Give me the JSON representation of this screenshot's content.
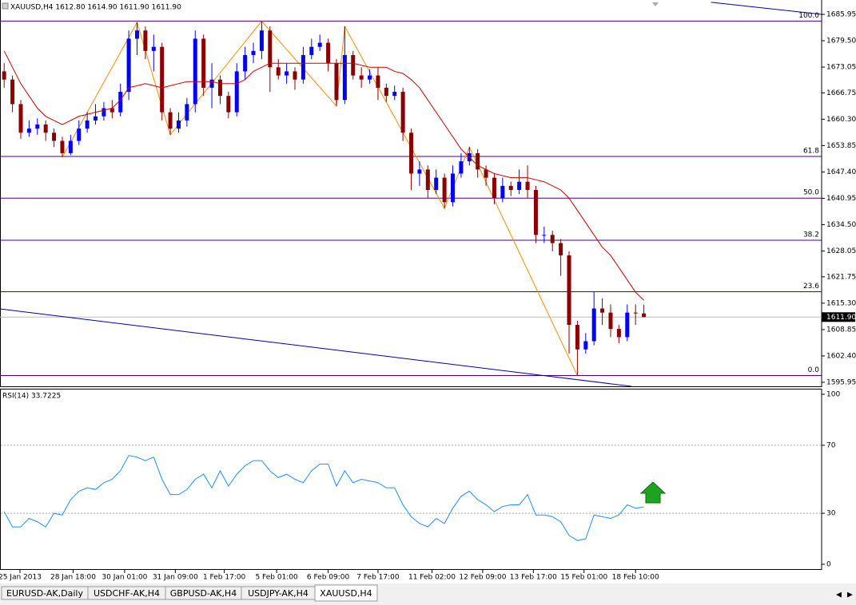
{
  "chart_data": [
    {
      "type": "candlestick",
      "title": "XAUUSD,H4  1612.80 1614.90 1611.90 1611.90",
      "up_color": "#0000ff",
      "down_color": "#8b0000",
      "open": [
        1672,
        1670,
        1664,
        1657,
        1658,
        1659,
        1657,
        1655,
        1652,
        1655,
        1658,
        1660,
        1661,
        1663,
        1662,
        1667,
        1680,
        1682,
        1677,
        1678,
        1662,
        1658,
        1660,
        1664,
        1680,
        1668,
        1670,
        1666,
        1662,
        1672,
        1676,
        1677,
        1682,
        1673,
        1671,
        1672,
        1670,
        1676,
        1678,
        1679,
        1674,
        1665,
        1676,
        1671,
        1670,
        1671,
        1668,
        1666,
        1667,
        1657,
        1647,
        1648,
        1643,
        1646,
        1640,
        1647,
        1650,
        1652,
        1648,
        1646,
        1641,
        1644,
        1643,
        1645,
        1643,
        1632,
        1632,
        1630,
        1627,
        1610,
        1604,
        1606,
        1614,
        1613,
        1609,
        1607,
        1613,
        1612.8
      ],
      "high": [
        1674,
        1671,
        1665,
        1660,
        1660.5,
        1660,
        1658,
        1656,
        1656.5,
        1660,
        1662,
        1664,
        1664.5,
        1665,
        1669,
        1682,
        1684,
        1683,
        1681,
        1679,
        1663,
        1662,
        1665.5,
        1682,
        1681,
        1674,
        1671,
        1667,
        1674,
        1678,
        1679,
        1684.3,
        1683,
        1675,
        1674,
        1673,
        1678,
        1680,
        1681,
        1680,
        1675,
        1683,
        1677,
        1673,
        1672.5,
        1673,
        1669,
        1668.5,
        1668,
        1658,
        1650,
        1649,
        1648,
        1647,
        1649,
        1652,
        1653.5,
        1653,
        1649,
        1647,
        1646,
        1645,
        1648,
        1649,
        1644,
        1634,
        1633,
        1631,
        1628,
        1611,
        1608,
        1618,
        1616.5,
        1615,
        1610,
        1615,
        1615,
        1614.9
      ],
      "low": [
        1668,
        1662,
        1655.5,
        1656,
        1656.5,
        1655,
        1653.5,
        1651,
        1651.5,
        1654,
        1657,
        1659,
        1660,
        1660.5,
        1661,
        1665,
        1676,
        1675,
        1672,
        1660,
        1656.5,
        1657,
        1658.5,
        1662,
        1666,
        1663,
        1664,
        1660.5,
        1661,
        1670,
        1674,
        1675,
        1667,
        1670,
        1669,
        1667.5,
        1669,
        1675,
        1677,
        1672,
        1663.5,
        1664,
        1670,
        1668,
        1669,
        1665,
        1664.5,
        1665,
        1655,
        1643,
        1644,
        1641,
        1642,
        1638.5,
        1639,
        1646,
        1649,
        1646,
        1644,
        1639.5,
        1640,
        1641.5,
        1642,
        1641,
        1630,
        1630,
        1628,
        1622,
        1603,
        1597.6,
        1603,
        1605,
        1610,
        1607,
        1605.5,
        1606,
        1610,
        1611.9
      ],
      "close": [
        1670,
        1664,
        1657,
        1658,
        1659,
        1657,
        1655,
        1652,
        1655,
        1658,
        1660,
        1661,
        1663,
        1662,
        1667,
        1680,
        1682,
        1677,
        1678,
        1662,
        1658,
        1660,
        1664,
        1680,
        1668,
        1670,
        1666,
        1662,
        1672,
        1676,
        1677,
        1682,
        1673,
        1671,
        1672,
        1670,
        1676,
        1678,
        1679,
        1674,
        1665,
        1676,
        1671,
        1670,
        1671,
        1668,
        1666,
        1667,
        1657,
        1647,
        1648,
        1643,
        1646,
        1640,
        1647,
        1650,
        1652,
        1648,
        1646,
        1641,
        1644,
        1643,
        1645,
        1643,
        1632,
        1632,
        1630,
        1627,
        1610,
        1604,
        1606,
        1614,
        1613,
        1609,
        1607,
        1613,
        1612.8,
        1611.9
      ],
      "ma": {
        "color": "#cc0000",
        "values": [
          1677,
          1673,
          1669,
          1666,
          1663,
          1661,
          1660,
          1659,
          1660,
          1661,
          1661.5,
          1662,
          1662.5,
          1663,
          1665,
          1668,
          1668.5,
          1669,
          1668.5,
          1668,
          1668.5,
          1669,
          1669.5,
          1669.5,
          1669.5,
          1669.5,
          1669,
          1669,
          1669,
          1670,
          1672,
          1673,
          1674,
          1674,
          1674,
          1674,
          1674,
          1674,
          1674,
          1674,
          1674,
          1674,
          1674,
          1673.5,
          1673,
          1673,
          1673,
          1672,
          1671.5,
          1670,
          1668,
          1665,
          1662,
          1659,
          1656,
          1653,
          1651,
          1649,
          1648,
          1647,
          1646.5,
          1646,
          1646,
          1646,
          1645.5,
          1645,
          1644,
          1643,
          1641,
          1638,
          1635,
          1632,
          1629,
          1627,
          1624,
          1621,
          1618,
          1616
        ]
      },
      "zigzag": {
        "color": "#ff8c00",
        "x": [
          7,
          16,
          20,
          31,
          40,
          41,
          53,
          56,
          69
        ],
        "values": [
          1651,
          1684,
          1656.5,
          1684.3,
          1663.5,
          1683,
          1638.5,
          1653.5,
          1597.6
        ]
      },
      "trendlines": [
        {
          "color": "#0000a0",
          "x": [
            -0.5,
            75.5
          ],
          "values": [
            1613.9,
            1594.97
          ]
        },
        {
          "color": "#0000a0",
          "x": [
            85.1,
            98.4
          ],
          "values": [
            1688.9,
            1685.95
          ]
        }
      ],
      "levels": [
        {
          "value": 1684.3,
          "label": "100.0"
        },
        {
          "value": 1651.2,
          "label": "61.8"
        },
        {
          "value": 1641,
          "label": "50.0"
        },
        {
          "value": 1630.7,
          "label": "38.2"
        },
        {
          "value": 1618.1,
          "label": "23.6"
        },
        {
          "value": 1597.6,
          "label": "0.0"
        }
      ],
      "level_color": "#4b0082",
      "last_price": {
        "value": 1611.9,
        "label": "1611.90"
      },
      "xlim": [
        -0.5,
        98.4
      ],
      "ylim": [
        1594.97,
        1689.46
      ],
      "yticks": [
        {
          "value": 1685.95,
          "label": "1685.95"
        },
        {
          "value": 1679.5,
          "label": "1679.50"
        },
        {
          "value": 1673.05,
          "label": "1673.05"
        },
        {
          "value": 1666.75,
          "label": "1666.75"
        },
        {
          "value": 1660.3,
          "label": "1660.30"
        },
        {
          "value": 1653.85,
          "label": "1653.85"
        },
        {
          "value": 1647.4,
          "label": "1647.40"
        },
        {
          "value": 1640.95,
          "label": "1640.95"
        },
        {
          "value": 1634.5,
          "label": "1634.50"
        },
        {
          "value": 1628.05,
          "label": "1628.05"
        },
        {
          "value": 1621.75,
          "label": "1621.75"
        },
        {
          "value": 1615.3,
          "label": "1615.30"
        },
        {
          "value": 1608.85,
          "label": "1608.85"
        },
        {
          "value": 1602.4,
          "label": "1602.40"
        },
        {
          "value": 1595.95,
          "label": "1595.95"
        }
      ],
      "xticks": [
        {
          "value": 1.9,
          "label": "25 Jan 2013"
        },
        {
          "value": 8.3,
          "label": "28 Jan 18:00"
        },
        {
          "value": 14.5,
          "label": "30 Jan 01:00"
        },
        {
          "value": 20.6,
          "label": "31 Jan 09:00"
        },
        {
          "value": 26.5,
          "label": "1 Feb 17:00"
        },
        {
          "value": 32.8,
          "label": "5 Feb 01:00"
        },
        {
          "value": 39,
          "label": "6 Feb 09:00"
        },
        {
          "value": 45,
          "label": "7 Feb 17:00"
        },
        {
          "value": 51.5,
          "label": "11 Feb 02:00"
        },
        {
          "value": 57.6,
          "label": "12 Feb 09:00"
        },
        {
          "value": 63.7,
          "label": "13 Feb 17:00"
        },
        {
          "value": 69.8,
          "label": "15 Feb 01:00"
        },
        {
          "value": 76,
          "label": "18 Feb 10:00"
        }
      ]
    },
    {
      "type": "line",
      "title": "RSI(14) 33.7225",
      "color": "#1e90ff",
      "values": [
        31,
        22,
        22,
        27,
        25,
        22,
        30,
        29,
        38,
        43,
        45,
        44,
        48,
        50,
        55,
        64,
        63,
        61,
        63,
        50,
        41,
        41,
        44,
        50,
        53,
        45,
        55,
        46,
        53,
        58,
        61,
        61,
        55,
        51,
        53,
        50,
        48,
        55,
        59,
        59,
        46,
        55,
        48,
        50,
        49,
        48,
        45,
        45,
        35,
        28,
        24,
        22,
        27,
        24,
        33,
        40,
        43,
        38,
        35,
        31,
        34,
        35,
        35,
        41,
        29,
        29,
        28,
        25,
        17,
        14,
        15,
        29,
        28,
        27,
        29,
        35,
        33,
        33.7225
      ],
      "ylim": [
        -3.3,
        103.3
      ],
      "yticks": [
        100,
        70,
        30,
        0
      ],
      "levels": [
        70,
        30
      ]
    }
  ],
  "tabs": [
    "EURUSD-AK,Daily",
    "USDCHF-AK,H4",
    "GBPUSD-AK,H4",
    "USDJPY-AK,H4",
    "XAUUSD,H4"
  ],
  "active_tab": 4
}
